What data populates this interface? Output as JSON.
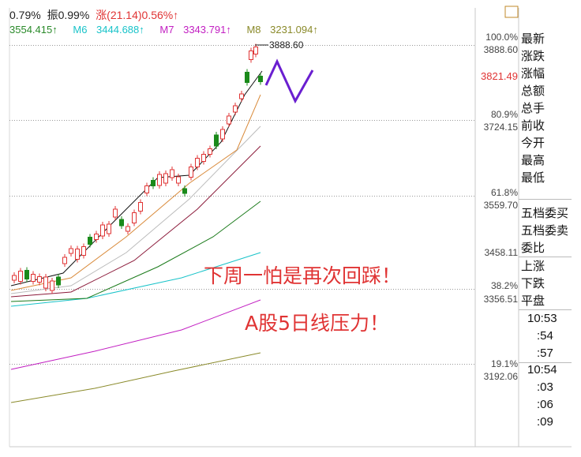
{
  "header": {
    "pct_change": "0.79%",
    "amplitude": "振0.99%",
    "rise": "涨(21.14)0.56%↑"
  },
  "ma_values": [
    {
      "label": "",
      "value": "3554.415↑",
      "color": "#2a8a2a"
    },
    {
      "label": "M6",
      "value": "3444.688↑",
      "color": "#19c3c9"
    },
    {
      "label": "M7",
      "value": "3343.791↑",
      "color": "#c21fc2"
    },
    {
      "label": "M8",
      "value": "3231.094↑",
      "color": "#8a8a2a"
    }
  ],
  "right_axis": [
    {
      "pct": "100.0%",
      "price": "3888.60"
    },
    {
      "current": "3821.49"
    },
    {
      "pct": "80.9%",
      "price": "3724.15"
    },
    {
      "pct": "61.8%",
      "price": "3559.70"
    },
    {
      "price": "3458.11"
    },
    {
      "pct": "38.2%",
      "price": "3356.51"
    },
    {
      "pct": "19.1%",
      "price": "3192.06"
    }
  ],
  "sidebar": {
    "quote_labels": [
      "最新",
      "涨跌",
      "涨幅",
      "总额",
      "总手",
      "前收",
      "今开",
      "最高",
      "最低"
    ],
    "book_labels": [
      "五档委买",
      "五档委卖",
      "委比"
    ],
    "breadth_labels": [
      "上涨",
      "下跌",
      "平盘"
    ],
    "times_a": [
      "10:53",
      ":54",
      ":57"
    ],
    "times_b": [
      "10:54",
      ":03",
      ":06",
      ":09"
    ]
  },
  "annotations": {
    "line1": "下周一怕是再次回踩！",
    "line2": "A股5日线压力！"
  },
  "chart_data": {
    "type": "candlestick",
    "peak_label": "3888.60",
    "ylim": [
      3160,
      3900
    ],
    "fib_levels": [
      {
        "pct": "100.0%",
        "price": 3888.6
      },
      {
        "pct": "80.9%",
        "price": 3724.15
      },
      {
        "pct": "61.8%",
        "price": 3559.7
      },
      {
        "pct": "38.2%",
        "price": 3356.51
      },
      {
        "pct": "19.1%",
        "price": 3192.06
      }
    ],
    "colors": {
      "up": "#e03434",
      "down": "#1a8a1a",
      "forecast": "#6a1fd0"
    }
  }
}
